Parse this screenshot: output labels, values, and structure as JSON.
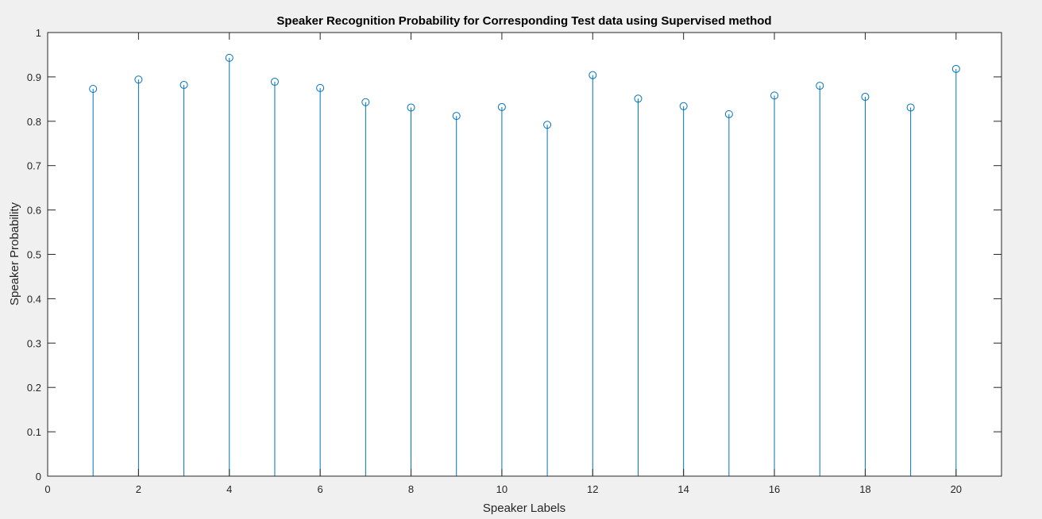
{
  "chart_data": {
    "type": "stem",
    "title": "Speaker Recognition Probability for Corresponding Test data using Supervised method",
    "xlabel": "Speaker Labels",
    "ylabel": "Speaker Probability",
    "xlim": [
      0,
      21
    ],
    "ylim": [
      0,
      1
    ],
    "xticks": [
      0,
      2,
      4,
      6,
      8,
      10,
      12,
      14,
      16,
      18,
      20
    ],
    "yticks": [
      0,
      0.1,
      0.2,
      0.3,
      0.4,
      0.5,
      0.6,
      0.7,
      0.8,
      0.9,
      1
    ],
    "grid": false,
    "marker": "circle",
    "color": "#0072bd",
    "x": [
      1,
      2,
      3,
      4,
      5,
      6,
      7,
      8,
      9,
      10,
      11,
      12,
      13,
      14,
      15,
      16,
      17,
      18,
      19,
      20
    ],
    "values": [
      0.873,
      0.894,
      0.882,
      0.943,
      0.889,
      0.875,
      0.843,
      0.831,
      0.812,
      0.832,
      0.792,
      0.904,
      0.851,
      0.834,
      0.816,
      0.858,
      0.88,
      0.855,
      0.831,
      0.918
    ]
  }
}
